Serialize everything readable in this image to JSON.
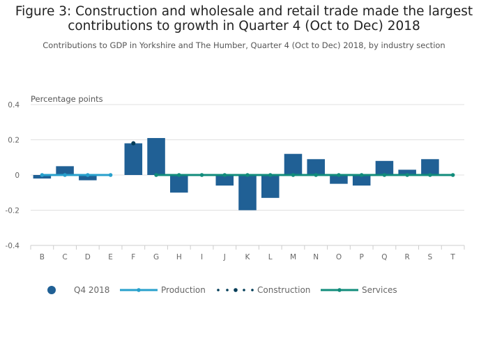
{
  "title_line1": "Figure 3: Construction and wholesale and retail trade made the largest",
  "title_line2": "contributions to growth in Quarter 4 (Oct to Dec) 2018",
  "subtitle": "Contributions to GDP in Yorkshire and The Humber, Quarter 4 (Oct to Dec) 2018, by industry section",
  "chart_data": {
    "type": "bar",
    "title": "Figure 3: Construction and wholesale and retail trade made the largest contributions to growth in Quarter 4 (Oct to Dec) 2018",
    "subtitle": "Contributions to GDP in Yorkshire and The Humber, Quarter 4 (Oct to Dec) 2018, by industry section",
    "ylabel": "Percentage points",
    "xlabel": "",
    "ylim": [
      -0.4,
      0.4
    ],
    "yticks": [
      "0.4",
      "0.2",
      "0",
      "-0.2",
      "-0.4"
    ],
    "grid": true,
    "legend_position": "bottom",
    "categories": [
      "B",
      "C",
      "D",
      "E",
      "F",
      "G",
      "H",
      "I",
      "J",
      "K",
      "L",
      "M",
      "N",
      "O",
      "P",
      "Q",
      "R",
      "S",
      "T"
    ],
    "series": [
      {
        "name": "Q4 2018",
        "type": "bar",
        "color": "#206095",
        "values": [
          -0.02,
          0.05,
          -0.03,
          0,
          0.18,
          0.21,
          -0.1,
          0,
          -0.06,
          -0.2,
          -0.13,
          0.12,
          0.09,
          -0.05,
          -0.06,
          0.08,
          0.03,
          0.09,
          0
        ]
      },
      {
        "name": "Production",
        "type": "line",
        "color": "#27a0cc",
        "range": [
          "B",
          "E"
        ],
        "value": 0
      },
      {
        "name": "Construction",
        "type": "point",
        "color": "#003c57",
        "range": [
          "F",
          "F"
        ],
        "value": 0.18
      },
      {
        "name": "Services",
        "type": "line",
        "color": "#118c7b",
        "range": [
          "G",
          "T"
        ],
        "value": 0
      }
    ]
  }
}
